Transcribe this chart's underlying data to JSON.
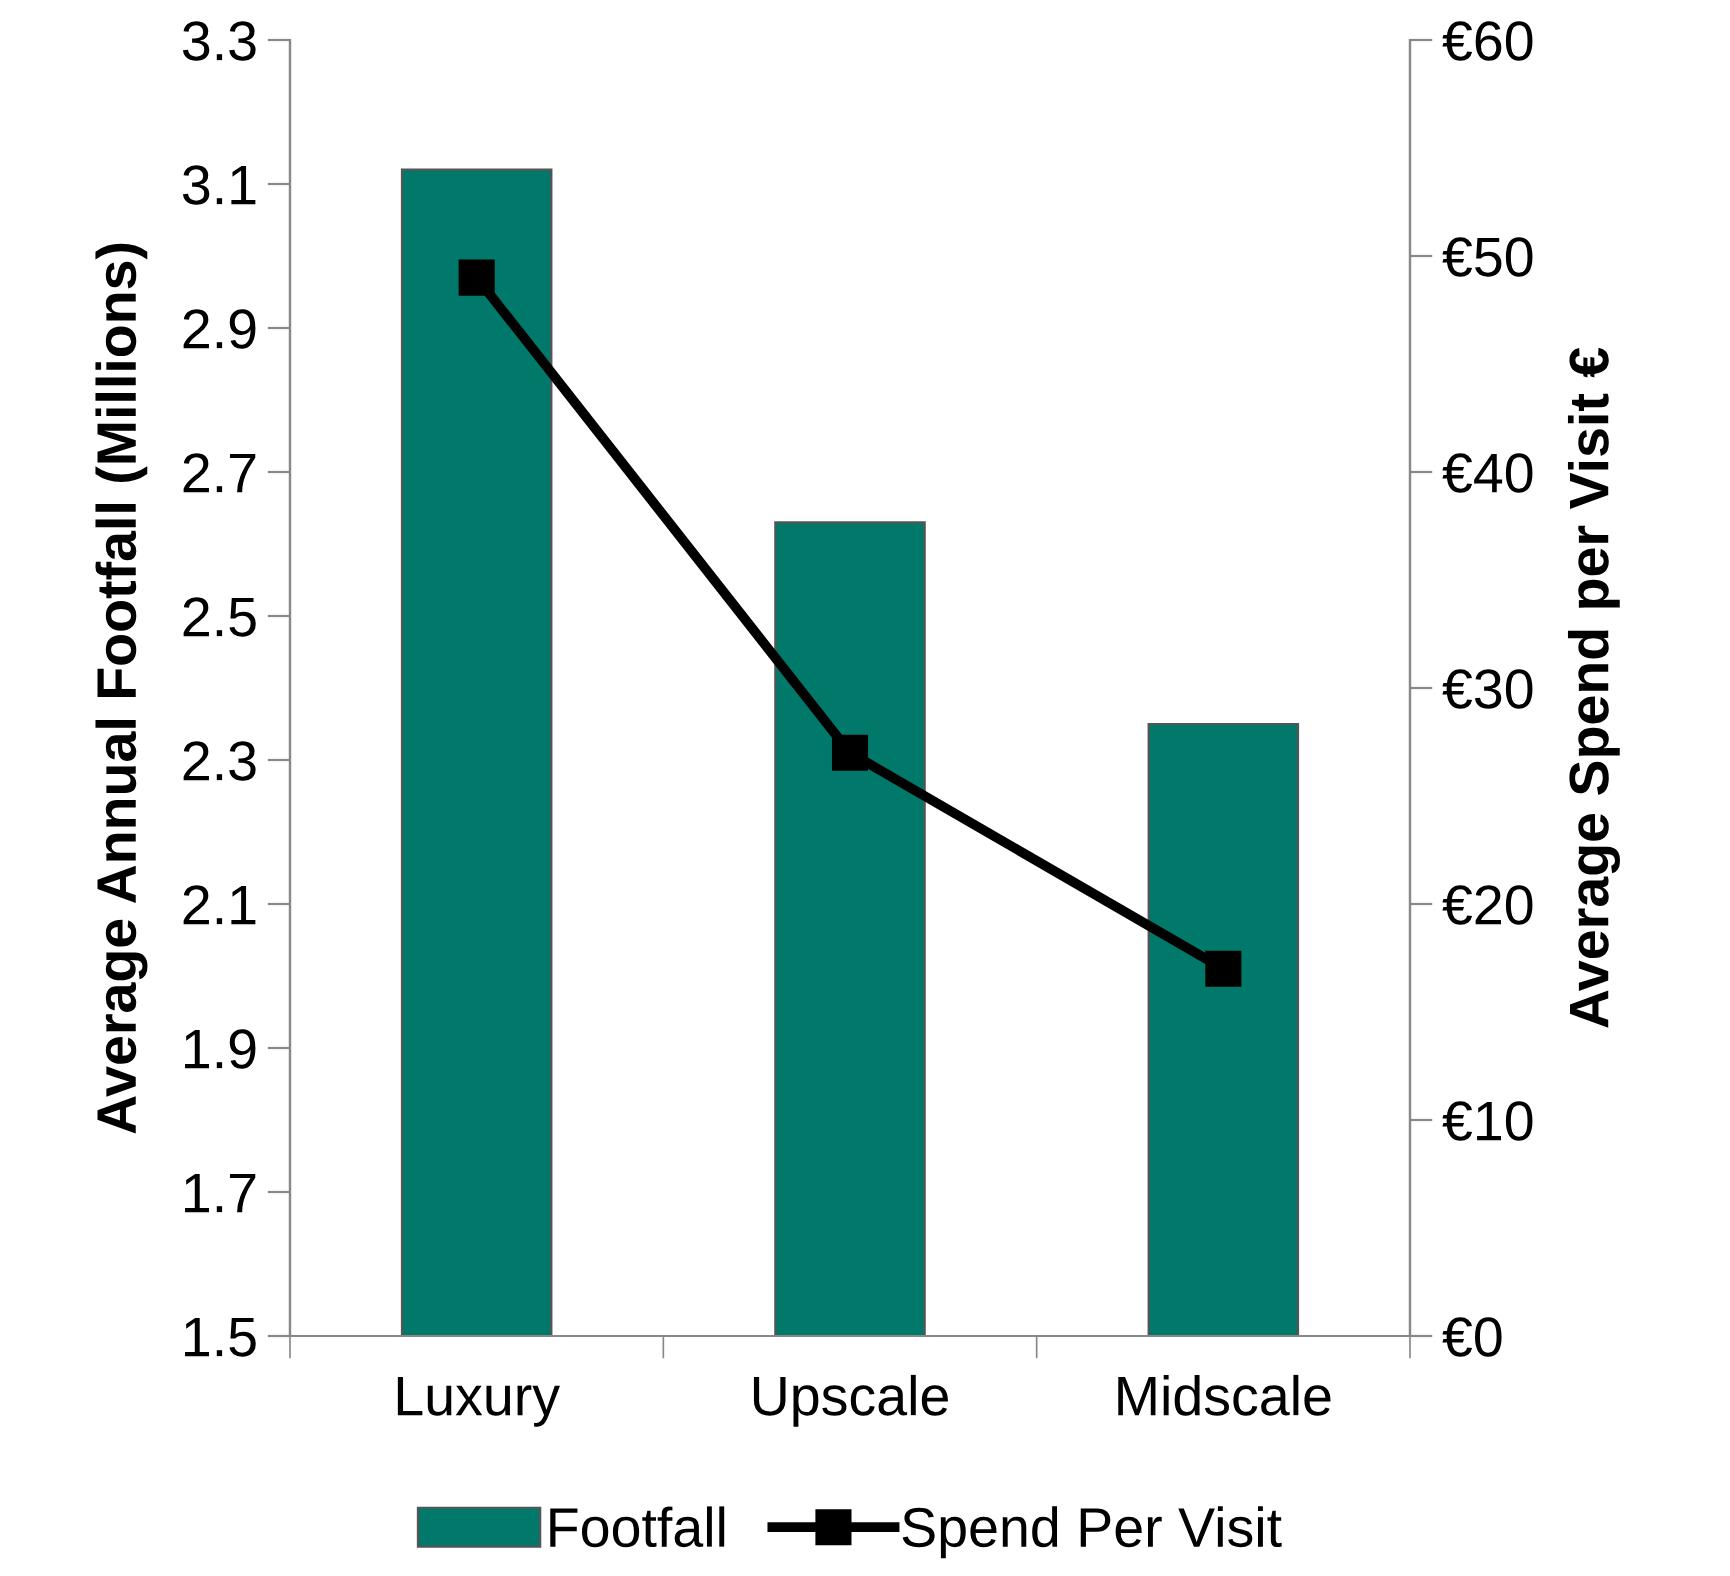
{
  "chart_data": {
    "type": "bar",
    "categories": [
      "Luxury",
      "Upscale",
      "Midscale"
    ],
    "ylabel": "Average Annual Footfall (Millions)",
    "y2label": "Average Spend per Visit €",
    "ylim": [
      1.5,
      3.3
    ],
    "yticks": [
      1.5,
      1.7,
      1.9,
      2.1,
      2.3,
      2.5,
      2.7,
      2.9,
      3.1,
      3.3
    ],
    "y2lim": [
      0,
      60
    ],
    "y2ticks": [
      {
        "value": 0,
        "label": "€0"
      },
      {
        "value": 10,
        "label": "€10"
      },
      {
        "value": 20,
        "label": "€20"
      },
      {
        "value": 30,
        "label": "€30"
      },
      {
        "value": 40,
        "label": "€40"
      },
      {
        "value": 50,
        "label": "€50"
      },
      {
        "value": 60,
        "label": "€60"
      }
    ],
    "series": [
      {
        "name": "Footfall",
        "color": "#00796b",
        "values": [
          3.12,
          2.63,
          2.35
        ]
      },
      {
        "name": "Spend Per Visit",
        "type": "line",
        "axis": "y2",
        "color": "#000000",
        "marker": "square",
        "values": [
          49,
          27,
          17
        ]
      }
    ],
    "legend": "bottom",
    "grid": false
  }
}
